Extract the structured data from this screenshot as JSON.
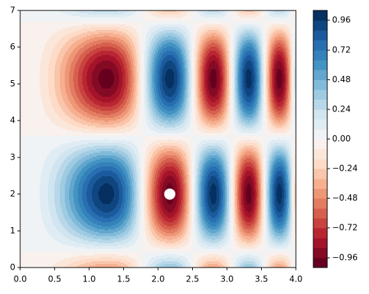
{
  "chart_data": {
    "type": "contourf",
    "xlim": [
      0,
      4
    ],
    "ylim": [
      0,
      7
    ],
    "xticks": [
      {
        "value": 0,
        "label": "0.0"
      },
      {
        "value": 0.5,
        "label": "0.5"
      },
      {
        "value": 1,
        "label": "1.0"
      },
      {
        "value": 1.5,
        "label": "1.5"
      },
      {
        "value": 2,
        "label": "2.0"
      },
      {
        "value": 2.5,
        "label": "2.5"
      },
      {
        "value": 3,
        "label": "3.0"
      },
      {
        "value": 3.5,
        "label": "3.5"
      },
      {
        "value": 4,
        "label": "4.0"
      }
    ],
    "yticks": [
      0,
      1,
      2,
      3,
      4,
      5,
      6,
      7
    ],
    "colormap": "RdBu",
    "levels": [
      -1.04,
      -0.96,
      -0.88,
      -0.8,
      -0.72,
      -0.64,
      -0.56,
      -0.48,
      -0.4,
      -0.32,
      -0.24,
      -0.16,
      -0.08,
      0,
      0.08,
      0.16,
      0.24,
      0.32,
      0.4,
      0.48,
      0.56,
      0.64,
      0.72,
      0.8,
      0.88,
      0.96,
      1.04
    ],
    "zticks": [
      {
        "value": -0.96,
        "label": "−0.96"
      },
      {
        "value": -0.72,
        "label": "−0.72"
      },
      {
        "value": -0.48,
        "label": "−0.48"
      },
      {
        "value": -0.24,
        "label": "−0.24"
      },
      {
        "value": 0,
        "label": "0.00"
      },
      0.24,
      0.48,
      0.72,
      0.96
    ],
    "marker": {
      "x": 2.17,
      "y": 2,
      "color": "#ffffff"
    }
  }
}
